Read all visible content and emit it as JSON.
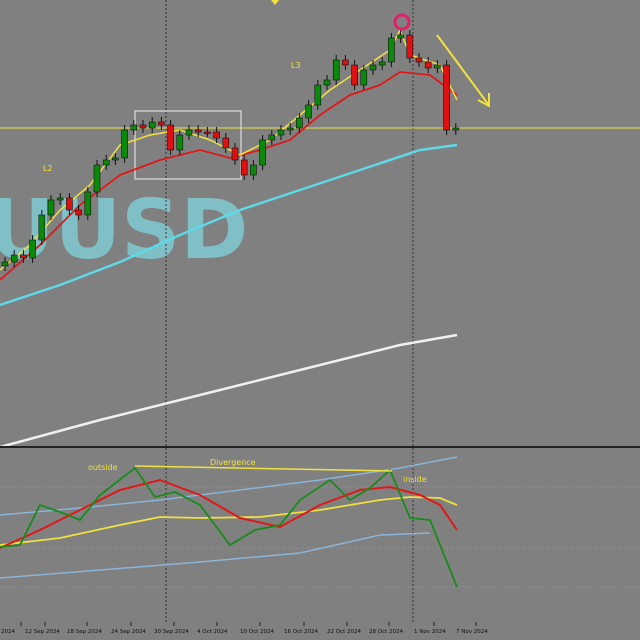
{
  "watermark": "UUSD",
  "annotations": {
    "l2": "L2",
    "l3": "L3",
    "outside": "outside",
    "divergence": "Divergence",
    "inside": "inside"
  },
  "x_axis_labels": [
    "2024",
    "12 Sep 2024",
    "18 Sep 2024",
    "24 Sep 2024",
    "30 Sep 2024",
    "4 Oct 2024",
    "10 Oct 2024",
    "16 Oct 2024",
    "22 Oct 2024",
    "28 Oct 2024",
    "1 Nov 2024",
    "7 Nov 2024"
  ]
}
